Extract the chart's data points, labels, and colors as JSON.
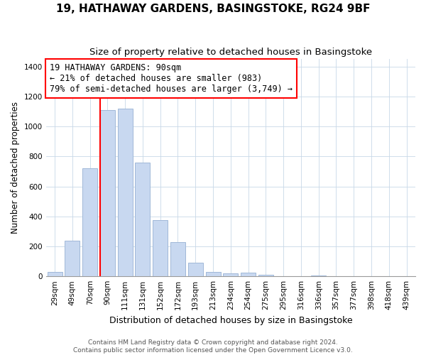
{
  "title": "19, HATHAWAY GARDENS, BASINGSTOKE, RG24 9BF",
  "subtitle": "Size of property relative to detached houses in Basingstoke",
  "xlabel": "Distribution of detached houses by size in Basingstoke",
  "ylabel": "Number of detached properties",
  "bar_labels": [
    "29sqm",
    "49sqm",
    "70sqm",
    "90sqm",
    "111sqm",
    "131sqm",
    "152sqm",
    "172sqm",
    "193sqm",
    "213sqm",
    "234sqm",
    "254sqm",
    "275sqm",
    "295sqm",
    "316sqm",
    "336sqm",
    "357sqm",
    "377sqm",
    "398sqm",
    "418sqm",
    "439sqm"
  ],
  "bar_heights": [
    30,
    240,
    720,
    1110,
    1120,
    760,
    375,
    230,
    90,
    30,
    20,
    25,
    10,
    0,
    0,
    5,
    0,
    0,
    0,
    0,
    0
  ],
  "bar_color": "#c8d8f0",
  "bar_edge_color": "#a0b8d8",
  "vline_index": 3,
  "vline_color": "red",
  "annotation_line1": "19 HATHAWAY GARDENS: 90sqm",
  "annotation_line2": "← 21% of detached houses are smaller (983)",
  "annotation_line3": "79% of semi-detached houses are larger (3,749) →",
  "annotation_box_color": "white",
  "annotation_box_edge_color": "red",
  "ylim": [
    0,
    1450
  ],
  "yticks": [
    0,
    200,
    400,
    600,
    800,
    1000,
    1200,
    1400
  ],
  "footer_line1": "Contains HM Land Registry data © Crown copyright and database right 2024.",
  "footer_line2": "Contains public sector information licensed under the Open Government Licence v3.0.",
  "title_fontsize": 11,
  "subtitle_fontsize": 9.5,
  "xlabel_fontsize": 9,
  "ylabel_fontsize": 8.5,
  "tick_fontsize": 7.5,
  "annotation_fontsize": 8.5,
  "footer_fontsize": 6.5,
  "fig_width": 6.0,
  "fig_height": 5.0,
  "fig_dpi": 100
}
